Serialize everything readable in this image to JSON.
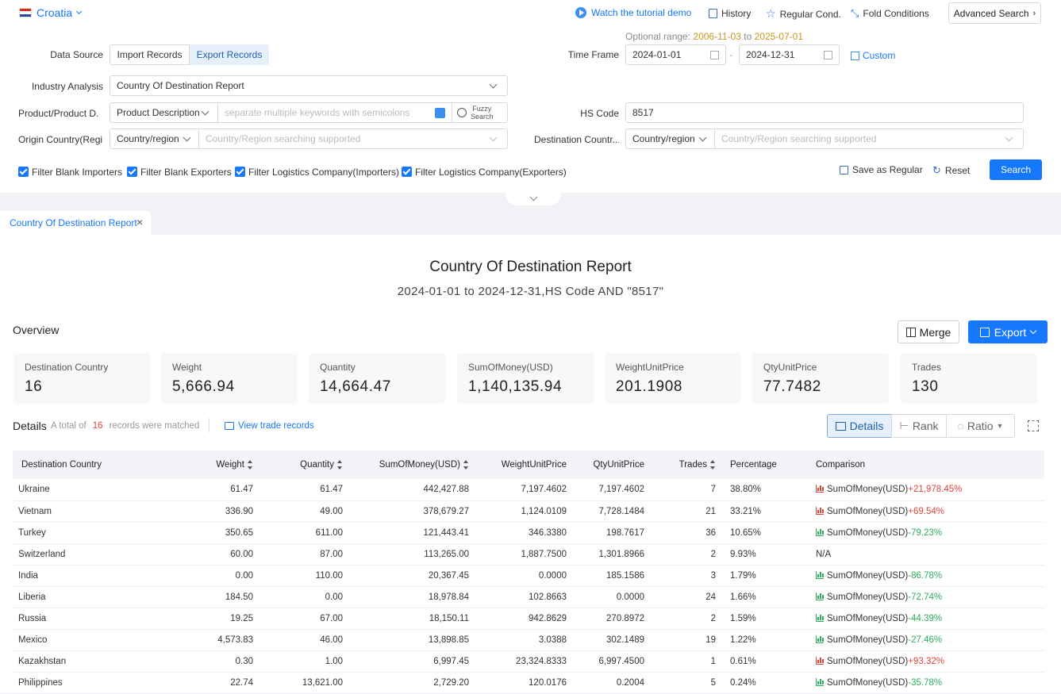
{
  "header": {
    "country": "Croatia",
    "tutorial_link": "Watch the tutorial demo",
    "history": "History",
    "regular_cond": "Regular Cond.",
    "fold_conditions": "Fold Conditions",
    "advanced_search": "Advanced Search"
  },
  "form": {
    "optional_range_label": "Optional range:",
    "optional_range_start": "2006-11-03",
    "optional_range_to": "to",
    "optional_range_end": "2025-07-01",
    "data_source_label": "Data Source",
    "import_records": "Import Records",
    "export_records": "Export Records",
    "time_frame_label": "Time Frame",
    "date_start": "2024-01-01",
    "date_end": "2024-12-31",
    "date_sep": "-",
    "custom": "Custom",
    "industry_label": "Industry Analysis",
    "industry_value": "Country Of Destination Report",
    "product_label": "Product/Product D...",
    "product_type": "Product Description",
    "product_placeholder": "separate multiple keywords with semicolons",
    "fuzzy_search_1": "Fuzzy",
    "fuzzy_search_2": "Search",
    "hs_code_label": "HS Code",
    "hs_code_value": "8517",
    "origin_label": "Origin Country(Regi...",
    "origin_type": "Country/region",
    "origin_placeholder": "Country/Region searching supported",
    "dest_label": "Destination Countr...",
    "dest_type": "Country/region",
    "dest_placeholder": "Country/Region searching supported",
    "filters": [
      "Filter Blank Importers",
      "Filter Blank Exporters",
      "Filter Logistics Company(Importers)",
      "Filter Logistics Company(Exporters)"
    ],
    "save_regular": "Save as Regular",
    "reset": "Reset",
    "search": "Search"
  },
  "tab": {
    "label": "Country Of Destination Report"
  },
  "report": {
    "title": "Country Of Destination Report",
    "subtitle": "2024-01-01 to 2024-12-31,HS Code AND \"8517\""
  },
  "overview": {
    "label": "Overview",
    "merge": "Merge",
    "export": "Export",
    "cards": [
      {
        "title": "Destination Country",
        "value": "16"
      },
      {
        "title": "Weight",
        "value": "5,666.94"
      },
      {
        "title": "Quantity",
        "value": "14,664.47"
      },
      {
        "title": "SumOfMoney(USD)",
        "value": "1,140,135.94"
      },
      {
        "title": "WeightUnitPrice",
        "value": "201.1908"
      },
      {
        "title": "QtyUnitPrice",
        "value": "77.7482"
      },
      {
        "title": "Trades",
        "value": "130"
      }
    ]
  },
  "details": {
    "label": "Details",
    "total_prefix": "A total of",
    "total_count": "16",
    "total_suffix": "records were matched",
    "view_trade": "View trade records",
    "view_details": "Details",
    "view_rank": "Rank",
    "view_ratio": "Ratio",
    "columns": [
      "Destination Country",
      "Weight",
      "Quantity",
      "SumOfMoney(USD)",
      "WeightUnitPrice",
      "QtyUnitPrice",
      "Trades",
      "Percentage",
      "Comparison"
    ],
    "rows": [
      {
        "country": "Ukraine",
        "weight": "61.47",
        "quantity": "61.47",
        "money": "442,427.88",
        "wup": "7,197.4602",
        "qup": "7,197.4602",
        "trades": "7",
        "pct": "38.80%",
        "cmp_label": "SumOfMoney(USD)",
        "cmp": "+21,978.45%",
        "dir": "up"
      },
      {
        "country": "Vietnam",
        "weight": "336.90",
        "quantity": "49.00",
        "money": "378,679.27",
        "wup": "1,124.0109",
        "qup": "7,728.1484",
        "trades": "21",
        "pct": "33.21%",
        "cmp_label": "SumOfMoney(USD)",
        "cmp": "+69.54%",
        "dir": "up"
      },
      {
        "country": "Turkey",
        "weight": "350.65",
        "quantity": "611.00",
        "money": "121,443.41",
        "wup": "346.3380",
        "qup": "198.7617",
        "trades": "36",
        "pct": "10.65%",
        "cmp_label": "SumOfMoney(USD)",
        "cmp": "-79.23%",
        "dir": "down"
      },
      {
        "country": "Switzerland",
        "weight": "60.00",
        "quantity": "87.00",
        "money": "113,265.00",
        "wup": "1,887.7500",
        "qup": "1,301.8966",
        "trades": "2",
        "pct": "9.93%",
        "cmp_label": "N/A",
        "cmp": "",
        "dir": "none"
      },
      {
        "country": "India",
        "weight": "0.00",
        "quantity": "110.00",
        "money": "20,367.45",
        "wup": "0.0000",
        "qup": "185.1586",
        "trades": "3",
        "pct": "1.79%",
        "cmp_label": "SumOfMoney(USD)",
        "cmp": "-86.78%",
        "dir": "down"
      },
      {
        "country": "Liberia",
        "weight": "184.50",
        "quantity": "0.00",
        "money": "18,978.84",
        "wup": "102.8663",
        "qup": "0.0000",
        "trades": "24",
        "pct": "1.66%",
        "cmp_label": "SumOfMoney(USD)",
        "cmp": "-72.74%",
        "dir": "down"
      },
      {
        "country": "Russia",
        "weight": "19.25",
        "quantity": "67.00",
        "money": "18,150.11",
        "wup": "942.8629",
        "qup": "270.8972",
        "trades": "2",
        "pct": "1.59%",
        "cmp_label": "SumOfMoney(USD)",
        "cmp": "-44.39%",
        "dir": "down"
      },
      {
        "country": "Mexico",
        "weight": "4,573.83",
        "quantity": "46.00",
        "money": "13,898.85",
        "wup": "3.0388",
        "qup": "302.1489",
        "trades": "19",
        "pct": "1.22%",
        "cmp_label": "SumOfMoney(USD)",
        "cmp": "-27.46%",
        "dir": "down"
      },
      {
        "country": "Kazakhstan",
        "weight": "0.30",
        "quantity": "1.00",
        "money": "6,997.45",
        "wup": "23,324.8333",
        "qup": "6,997.4500",
        "trades": "1",
        "pct": "0.61%",
        "cmp_label": "SumOfMoney(USD)",
        "cmp": "+93.32%",
        "dir": "up"
      },
      {
        "country": "Philippines",
        "weight": "22.74",
        "quantity": "13,621.00",
        "money": "2,729.20",
        "wup": "120.0176",
        "qup": "0.2004",
        "trades": "5",
        "pct": "0.24%",
        "cmp_label": "SumOfMoney(USD)",
        "cmp": "-35.78%",
        "dir": "down"
      }
    ]
  },
  "colors": {
    "accent": "#1677ff",
    "up": "#e0463a",
    "down": "#2fae5b",
    "range": "#c9961a"
  }
}
